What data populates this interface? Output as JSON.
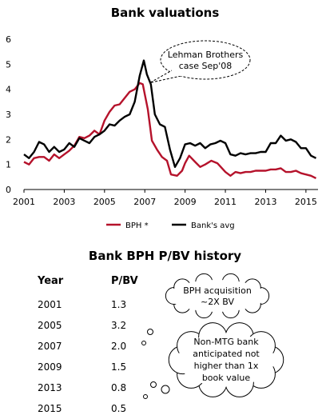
{
  "chart_data": {
    "type": "line",
    "title": "Bank valuations",
    "xlim": [
      2001,
      2015.6
    ],
    "ylim": [
      0,
      6
    ],
    "x_ticks": [
      "2001",
      "2003",
      "2005",
      "2007",
      "2009",
      "2011",
      "2013",
      "2015"
    ],
    "y_ticks": [
      "0",
      "1",
      "2",
      "3",
      "4",
      "5",
      "6"
    ],
    "legend_position": "bottom",
    "series": [
      {
        "name": "BPH *",
        "color": "#b5122b",
        "points": [
          [
            2001.0,
            1.1
          ],
          [
            2001.25,
            1.0
          ],
          [
            2001.5,
            1.25
          ],
          [
            2001.75,
            1.3
          ],
          [
            2002.0,
            1.3
          ],
          [
            2002.25,
            1.15
          ],
          [
            2002.5,
            1.4
          ],
          [
            2002.75,
            1.25
          ],
          [
            2003.0,
            1.4
          ],
          [
            2003.25,
            1.55
          ],
          [
            2003.5,
            1.75
          ],
          [
            2003.75,
            2.1
          ],
          [
            2004.0,
            2.05
          ],
          [
            2004.25,
            2.15
          ],
          [
            2004.5,
            2.35
          ],
          [
            2004.75,
            2.2
          ],
          [
            2005.0,
            2.75
          ],
          [
            2005.25,
            3.1
          ],
          [
            2005.5,
            3.35
          ],
          [
            2005.75,
            3.4
          ],
          [
            2006.0,
            3.65
          ],
          [
            2006.25,
            3.9
          ],
          [
            2006.5,
            4.0
          ],
          [
            2006.75,
            4.25
          ],
          [
            2006.9,
            4.2
          ],
          [
            2007.0,
            3.8
          ],
          [
            2007.15,
            3.2
          ],
          [
            2007.35,
            1.95
          ],
          [
            2007.6,
            1.6
          ],
          [
            2007.85,
            1.3
          ],
          [
            2008.1,
            1.15
          ],
          [
            2008.3,
            0.6
          ],
          [
            2008.6,
            0.55
          ],
          [
            2008.85,
            0.75
          ],
          [
            2009.0,
            1.05
          ],
          [
            2009.2,
            1.35
          ],
          [
            2009.5,
            1.1
          ],
          [
            2009.75,
            0.9
          ],
          [
            2010.0,
            1.0
          ],
          [
            2010.3,
            1.15
          ],
          [
            2010.6,
            1.05
          ],
          [
            2011.0,
            0.7
          ],
          [
            2011.25,
            0.55
          ],
          [
            2011.5,
            0.7
          ],
          [
            2011.75,
            0.65
          ],
          [
            2012.0,
            0.7
          ],
          [
            2012.25,
            0.7
          ],
          [
            2012.5,
            0.75
          ],
          [
            2012.75,
            0.75
          ],
          [
            2013.0,
            0.75
          ],
          [
            2013.25,
            0.8
          ],
          [
            2013.5,
            0.8
          ],
          [
            2013.75,
            0.85
          ],
          [
            2014.0,
            0.7
          ],
          [
            2014.25,
            0.7
          ],
          [
            2014.5,
            0.75
          ],
          [
            2014.75,
            0.65
          ],
          [
            2015.0,
            0.6
          ],
          [
            2015.25,
            0.55
          ],
          [
            2015.5,
            0.45
          ]
        ]
      },
      {
        "name": "Bank's avg",
        "color": "#000000",
        "points": [
          [
            2001.0,
            1.4
          ],
          [
            2001.25,
            1.25
          ],
          [
            2001.5,
            1.5
          ],
          [
            2001.75,
            1.9
          ],
          [
            2002.0,
            1.8
          ],
          [
            2002.25,
            1.5
          ],
          [
            2002.5,
            1.7
          ],
          [
            2002.75,
            1.5
          ],
          [
            2003.0,
            1.6
          ],
          [
            2003.25,
            1.85
          ],
          [
            2003.5,
            1.7
          ],
          [
            2003.75,
            2.05
          ],
          [
            2004.0,
            1.95
          ],
          [
            2004.25,
            1.85
          ],
          [
            2004.5,
            2.1
          ],
          [
            2004.75,
            2.2
          ],
          [
            2005.0,
            2.35
          ],
          [
            2005.25,
            2.6
          ],
          [
            2005.5,
            2.55
          ],
          [
            2005.75,
            2.75
          ],
          [
            2006.0,
            2.9
          ],
          [
            2006.25,
            3.0
          ],
          [
            2006.5,
            3.5
          ],
          [
            2006.75,
            4.55
          ],
          [
            2006.95,
            5.15
          ],
          [
            2007.1,
            4.6
          ],
          [
            2007.3,
            4.2
          ],
          [
            2007.5,
            3.0
          ],
          [
            2007.75,
            2.6
          ],
          [
            2008.0,
            2.5
          ],
          [
            2008.25,
            1.6
          ],
          [
            2008.5,
            0.9
          ],
          [
            2008.75,
            1.25
          ],
          [
            2009.0,
            1.8
          ],
          [
            2009.25,
            1.85
          ],
          [
            2009.5,
            1.75
          ],
          [
            2009.75,
            1.85
          ],
          [
            2010.0,
            1.65
          ],
          [
            2010.25,
            1.8
          ],
          [
            2010.5,
            1.85
          ],
          [
            2010.75,
            1.95
          ],
          [
            2011.0,
            1.85
          ],
          [
            2011.25,
            1.4
          ],
          [
            2011.5,
            1.35
          ],
          [
            2011.75,
            1.45
          ],
          [
            2012.0,
            1.4
          ],
          [
            2012.25,
            1.45
          ],
          [
            2012.5,
            1.45
          ],
          [
            2012.75,
            1.5
          ],
          [
            2013.0,
            1.5
          ],
          [
            2013.25,
            1.85
          ],
          [
            2013.5,
            1.85
          ],
          [
            2013.75,
            2.15
          ],
          [
            2014.0,
            1.95
          ],
          [
            2014.25,
            2.0
          ],
          [
            2014.5,
            1.9
          ],
          [
            2014.75,
            1.65
          ],
          [
            2015.0,
            1.65
          ],
          [
            2015.25,
            1.35
          ],
          [
            2015.5,
            1.25
          ]
        ]
      }
    ],
    "annotations": [
      {
        "lines": [
          "Lehman Brothers",
          "case Sep'08"
        ],
        "points_to": [
          2007.1,
          4.2
        ]
      }
    ]
  },
  "table": {
    "title": "Bank BPH P/BV history",
    "headers": {
      "year": "Year",
      "pbv": "P/BV"
    },
    "rows": [
      {
        "year": "2001",
        "pbv": "1.3"
      },
      {
        "year": "2005",
        "pbv": "3.2"
      },
      {
        "year": "2007",
        "pbv": "2.0"
      },
      {
        "year": "2009",
        "pbv": "1.5"
      },
      {
        "year": "2013",
        "pbv": "0.8"
      },
      {
        "year": "2015",
        "pbv": "0.5"
      }
    ],
    "callouts": [
      {
        "lines": [
          "BPH acquisition",
          "~2X BV"
        ]
      },
      {
        "lines": [
          "Non-MTG bank",
          "anticipated not",
          "higher than 1x",
          "book value"
        ]
      }
    ]
  }
}
